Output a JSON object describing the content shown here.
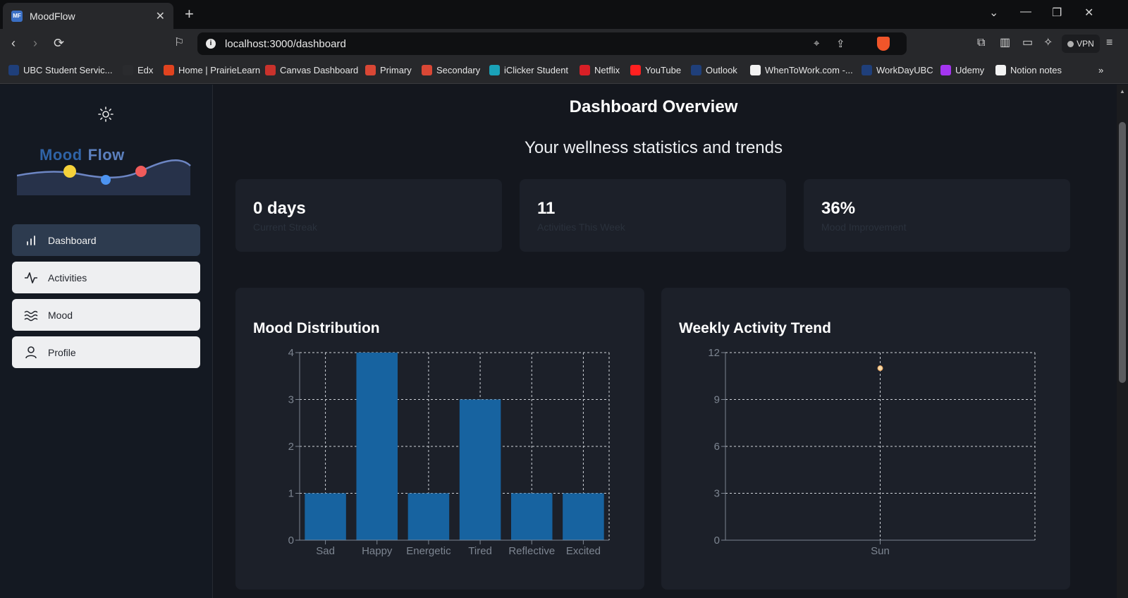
{
  "browser": {
    "tab_title": "MoodFlow",
    "tab_favicon": "MF",
    "url": "localhost:3000/dashboard",
    "vpn_label": "VPN",
    "bookmarks": [
      {
        "label": "UBC Student Servic...",
        "color": "#1f3f7a"
      },
      {
        "label": "Edx",
        "color": "#2a2b2e"
      },
      {
        "label": "Home | PrairieLearn",
        "color": "#e0431f"
      },
      {
        "label": "Canvas Dashboard",
        "color": "#c9322c"
      },
      {
        "label": "Primary",
        "color": "#d94735"
      },
      {
        "label": "Secondary",
        "color": "#d94735"
      },
      {
        "label": "iClicker Student",
        "color": "#1aa2b8"
      },
      {
        "label": "Netflix",
        "color": "#d81f26"
      },
      {
        "label": "YouTube",
        "color": "#ff2020"
      },
      {
        "label": "Outlook",
        "color": "#1f3f7a"
      },
      {
        "label": "WhenToWork.com -...",
        "color": "#f2f2f2"
      },
      {
        "label": "WorkDayUBC",
        "color": "#1f3f7a"
      },
      {
        "label": "Udemy",
        "color": "#a435f0"
      },
      {
        "label": "Notion notes",
        "color": "#f2f2f2"
      }
    ]
  },
  "sidebar": {
    "logo_word1": "Mood",
    "logo_word2": "Flow",
    "theme_toggle_icon": "sun-icon",
    "items": [
      {
        "label": "Dashboard",
        "icon": "bar-chart-icon",
        "active": true
      },
      {
        "label": "Activities",
        "icon": "activity-pulse-icon",
        "active": false
      },
      {
        "label": "Mood",
        "icon": "waves-icon",
        "active": false
      },
      {
        "label": "Profile",
        "icon": "user-icon",
        "active": false
      }
    ]
  },
  "main": {
    "title": "Dashboard Overview",
    "subtitle": "Your wellness statistics and trends",
    "stats": [
      {
        "value": "0 days",
        "label": "Current Streak"
      },
      {
        "value": "11",
        "label": "Activities This Week"
      },
      {
        "value": "36%",
        "label": "Mood Improvement"
      }
    ]
  },
  "colors": {
    "bar": "#1763a0",
    "point": "#f5d9a8",
    "grid": "#cfd3d9"
  },
  "chart_data": [
    {
      "type": "bar",
      "title": "Mood Distribution",
      "categories": [
        "Sad",
        "Happy",
        "Energetic",
        "Tired",
        "Reflective",
        "Excited"
      ],
      "values": [
        1,
        4,
        1,
        3,
        1,
        1
      ],
      "ylim": [
        0,
        4
      ],
      "yticks": [
        0,
        1,
        2,
        3,
        4
      ],
      "grid": true
    },
    {
      "type": "line",
      "title": "Weekly Activity Trend",
      "x": [
        "Sun"
      ],
      "y": [
        11
      ],
      "ylim": [
        0,
        12
      ],
      "yticks": [
        0,
        3,
        6,
        9,
        12
      ],
      "grid": true
    }
  ]
}
